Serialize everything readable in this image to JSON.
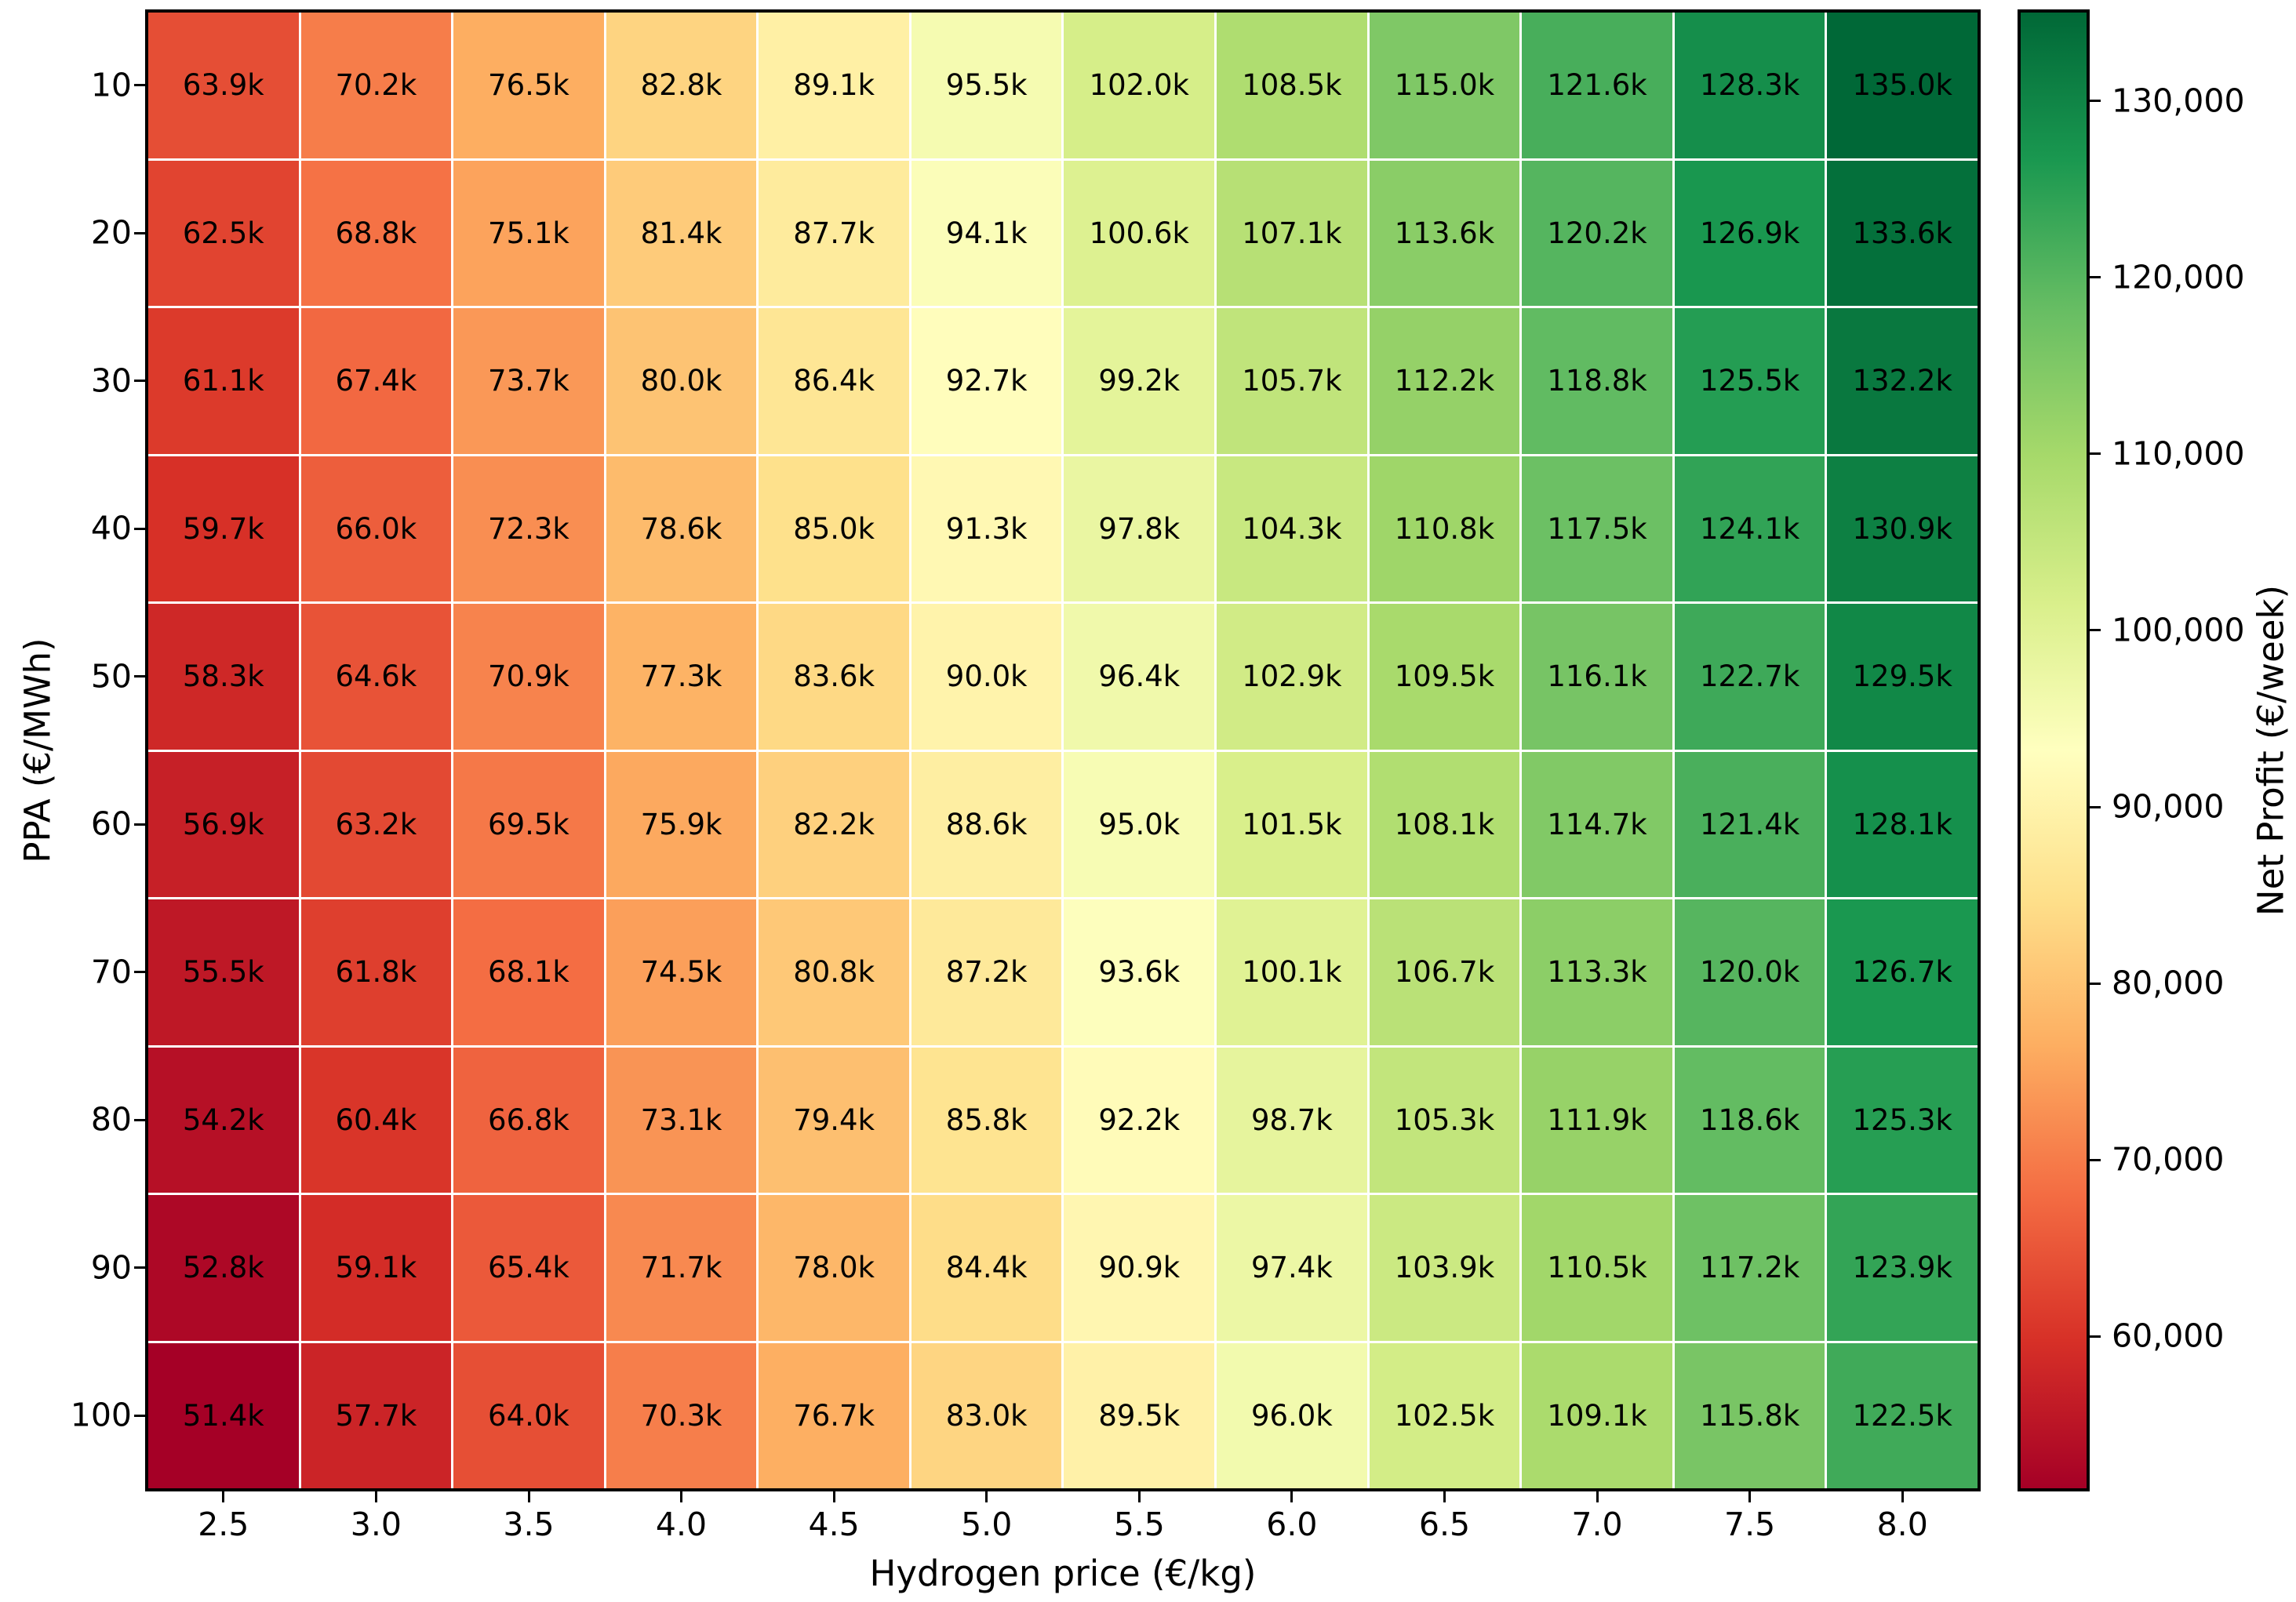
{
  "figure": {
    "background": "#ffffff"
  },
  "chart_data": {
    "type": "heatmap",
    "xlabel": "Hydrogen price (€/kg)",
    "ylabel": "PPA (€/MWh)",
    "x_tick_labels": [
      "2.5",
      "3.0",
      "3.5",
      "4.0",
      "4.5",
      "5.0",
      "5.5",
      "6.0",
      "6.5",
      "7.0",
      "7.5",
      "8.0"
    ],
    "y_tick_labels": [
      "10",
      "20",
      "30",
      "40",
      "50",
      "60",
      "70",
      "80",
      "90",
      "100"
    ],
    "values_keur_per_week": [
      [
        63.9,
        70.2,
        76.5,
        82.8,
        89.1,
        95.5,
        102.0,
        108.5,
        115.0,
        121.6,
        128.3,
        135.0
      ],
      [
        62.5,
        68.8,
        75.1,
        81.4,
        87.7,
        94.1,
        100.6,
        107.1,
        113.6,
        120.2,
        126.9,
        133.6
      ],
      [
        61.1,
        67.4,
        73.7,
        80.0,
        86.4,
        92.7,
        99.2,
        105.7,
        112.2,
        118.8,
        125.5,
        132.2
      ],
      [
        59.7,
        66.0,
        72.3,
        78.6,
        85.0,
        91.3,
        97.8,
        104.3,
        110.8,
        117.5,
        124.1,
        130.9
      ],
      [
        58.3,
        64.6,
        70.9,
        77.3,
        83.6,
        90.0,
        96.4,
        102.9,
        109.5,
        116.1,
        122.7,
        129.5
      ],
      [
        56.9,
        63.2,
        69.5,
        75.9,
        82.2,
        88.6,
        95.0,
        101.5,
        108.1,
        114.7,
        121.4,
        128.1
      ],
      [
        55.5,
        61.8,
        68.1,
        74.5,
        80.8,
        87.2,
        93.6,
        100.1,
        106.7,
        113.3,
        120.0,
        126.7
      ],
      [
        54.2,
        60.4,
        66.8,
        73.1,
        79.4,
        85.8,
        92.2,
        98.7,
        105.3,
        111.9,
        118.6,
        125.3
      ],
      [
        52.8,
        59.1,
        65.4,
        71.7,
        78.0,
        84.4,
        90.9,
        97.4,
        103.9,
        110.5,
        117.2,
        123.9
      ],
      [
        51.4,
        57.7,
        64.0,
        70.3,
        76.7,
        83.0,
        89.5,
        96.0,
        102.5,
        109.1,
        115.8,
        122.5
      ]
    ],
    "annotation_suffix": "k",
    "annotation_color": "#000000",
    "grid_line_color": "#ffffff",
    "colormap": {
      "name": "RdYlGn",
      "stops": [
        "#a50026",
        "#d73027",
        "#f46d43",
        "#fdae61",
        "#fee08b",
        "#ffffbf",
        "#d9ef8b",
        "#a6d96a",
        "#66bd63",
        "#1a9850",
        "#006837"
      ],
      "vmin_eur": 51400,
      "vmax_eur": 135000
    },
    "colorbar": {
      "label": "Net Profit (€/week)",
      "tick_values": [
        60000,
        70000,
        80000,
        90000,
        100000,
        110000,
        120000,
        130000
      ],
      "tick_labels": [
        "60,000",
        "70,000",
        "80,000",
        "90,000",
        "100,000",
        "110,000",
        "120,000",
        "130,000"
      ]
    },
    "legend": "none",
    "grid": "white cell separators"
  }
}
